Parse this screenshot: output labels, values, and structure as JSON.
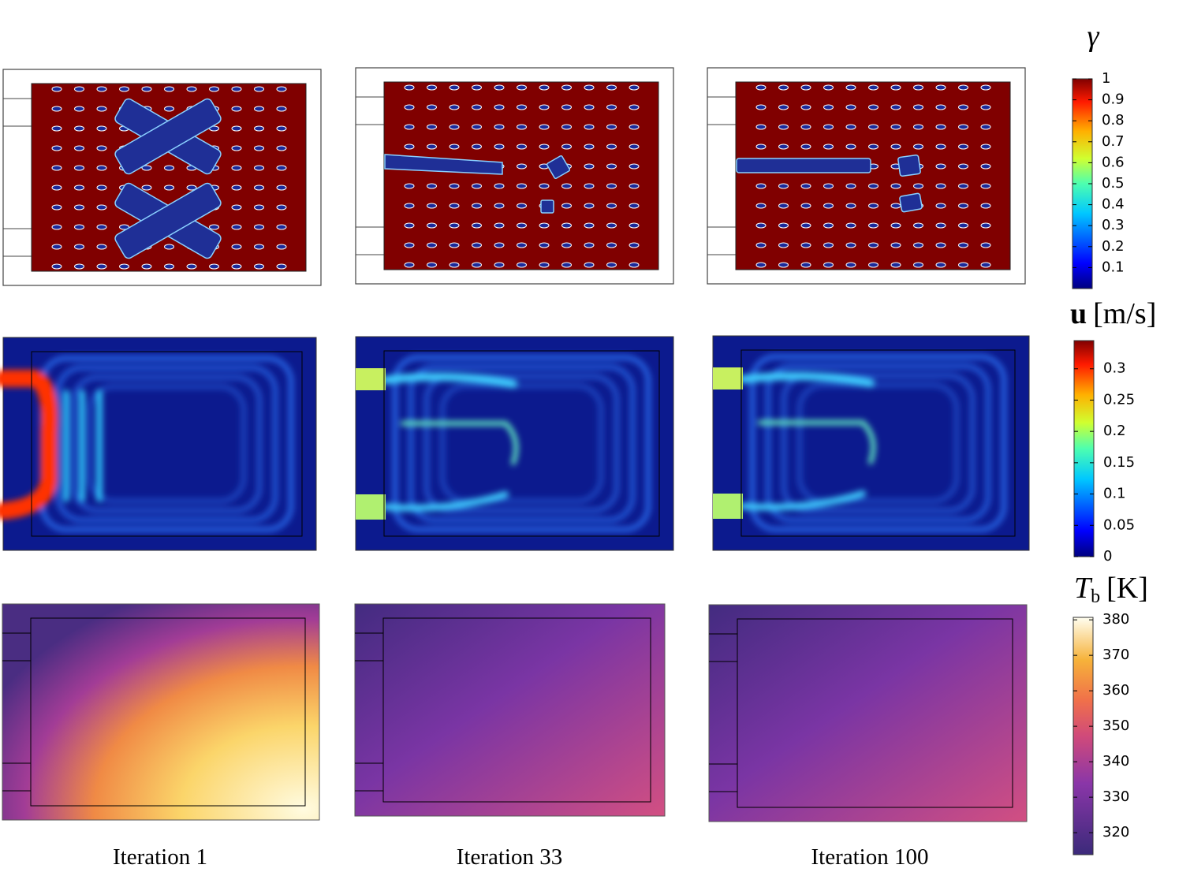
{
  "columns": [
    "Iteration 1",
    "Iteration 33",
    "Iteration 100"
  ],
  "colorbars": [
    {
      "title": {
        "symbol": "γ"
      },
      "range": [
        0,
        1
      ],
      "ticks": [
        1,
        0.9,
        0.8,
        0.7,
        0.6,
        0.5,
        0.4,
        0.3,
        0.2,
        0.1
      ]
    },
    {
      "title": {
        "symbol": "u",
        "unit": "[m/s]"
      },
      "range": [
        0,
        0.345
      ],
      "ticks": [
        0.3,
        0.25,
        0.2,
        0.15,
        0.1,
        0.05,
        0
      ]
    },
    {
      "title": {
        "symbol": "T",
        "subscript": "b",
        "unit": "[K]"
      },
      "range": [
        313.8,
        380.7
      ],
      "ticks": [
        380,
        370,
        360,
        350,
        340,
        330,
        320
      ]
    }
  ]
}
